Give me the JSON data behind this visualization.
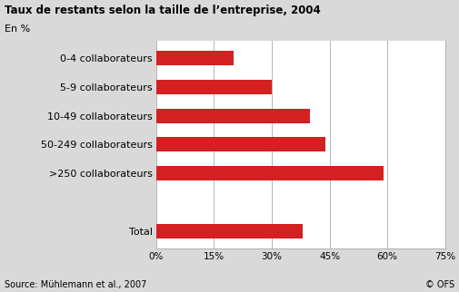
{
  "title": "Taux de restants selon la taille de l’entreprise, 2004",
  "subtitle": "En %",
  "categories": [
    "0-4 collaborateurs",
    "5-9 collaborateurs",
    "10-49 collaborateurs",
    "50-249 collaborateurs",
    ">250 collaborateurs",
    "",
    "Total"
  ],
  "values": [
    20,
    30,
    40,
    44,
    59,
    0,
    38
  ],
  "bar_color": "#d42020",
  "background_color": "#d9d9d9",
  "plot_background_color": "#ffffff",
  "xlim": [
    0,
    75
  ],
  "xticks": [
    0,
    15,
    30,
    45,
    60,
    75
  ],
  "xtick_labels": [
    "0%",
    "15%",
    "30%",
    "45%",
    "60%",
    "75%"
  ],
  "source_text": "Source: Mühlemann et al., 2007",
  "copyright_text": "© OFS",
  "title_fontsize": 8.5,
  "subtitle_fontsize": 8.0,
  "label_fontsize": 8.0,
  "tick_fontsize": 7.5,
  "source_fontsize": 7.0,
  "bar_height": 0.5
}
